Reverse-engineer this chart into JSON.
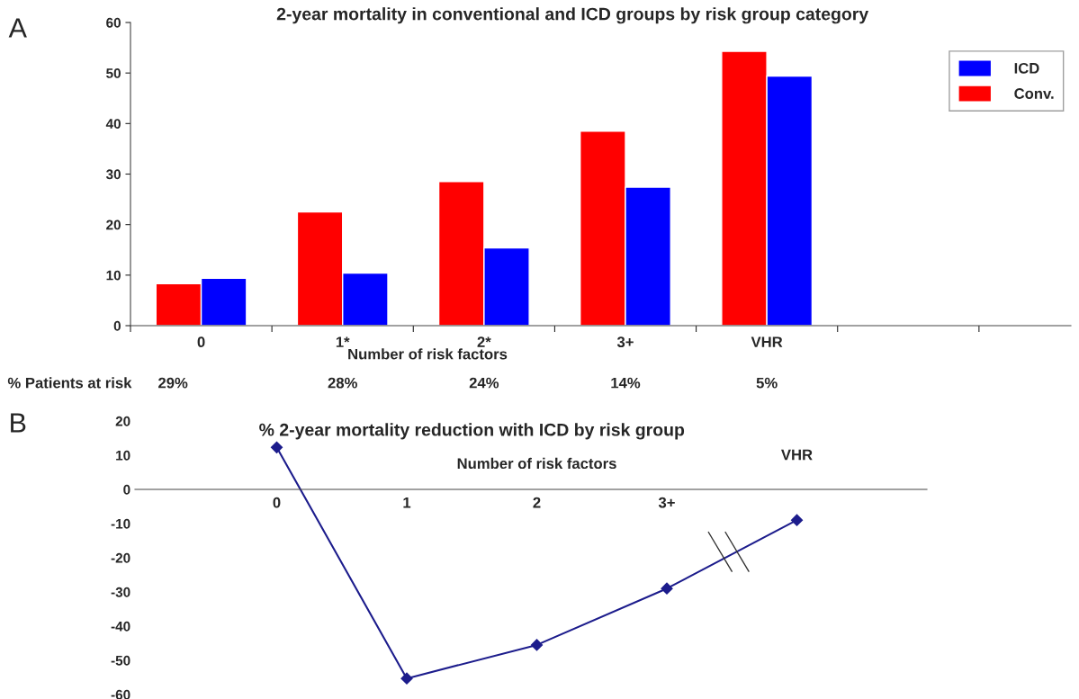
{
  "chart_data": [
    {
      "type": "bar",
      "title": "2-year mortality in conventional and ICD groups by risk group category",
      "xlabel": "Number of risk factors",
      "categories": [
        "0",
        "1*",
        "2*",
        "3+",
        "VHR"
      ],
      "series": [
        {
          "name": "Conv.",
          "color": "#ff0000",
          "values": [
            8.3,
            22.5,
            28.5,
            38.5,
            54.3
          ]
        },
        {
          "name": "ICD",
          "color": "#0000ff",
          "values": [
            9.4,
            10.4,
            15.4,
            27.4,
            49.4
          ]
        }
      ],
      "ylim": [
        0,
        60
      ],
      "yticks": [
        0,
        10,
        20,
        30,
        40,
        50,
        60
      ],
      "grid": false,
      "legend": "top right",
      "annotations": [
        "A",
        "% Patients at risk",
        "29%",
        "28%",
        "24%",
        "14%",
        "5%"
      ]
    },
    {
      "type": "line",
      "title": "% 2-year mortality reduction with ICD by risk group",
      "xlabel": "Number of risk factors",
      "categories": [
        "0",
        "1",
        "2",
        "3+",
        "VHR"
      ],
      "series": [
        {
          "color": "#1c1c8c",
          "values": [
            12.3,
            -55.3,
            -45.5,
            -29,
            -9
          ]
        }
      ],
      "ylim": [
        -60,
        20
      ],
      "yticks": [
        -60,
        -50,
        -40,
        -30,
        -20,
        -10,
        0,
        10,
        20
      ],
      "grid": false,
      "legend": false,
      "marker": "diamond",
      "line_style": "solid",
      "annotations": [
        "B"
      ]
    }
  ]
}
